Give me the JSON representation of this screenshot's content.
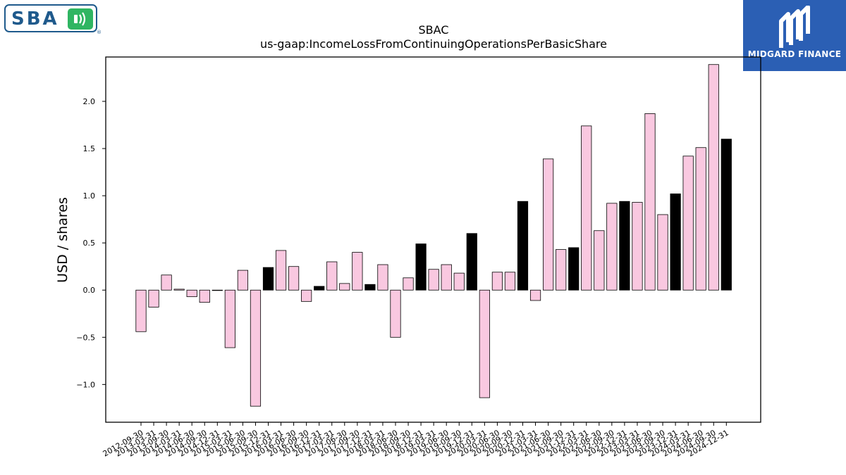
{
  "brand": {
    "left_logo_text": "SBA",
    "right_logo_text": "MIDGARD FINANCE"
  },
  "chart_data": {
    "type": "bar",
    "title": "SBAC",
    "subtitle": "us-gaap:IncomeLossFromContinuingOperationsPerBasicShare",
    "xlabel": "",
    "ylabel": "USD / shares",
    "ylim": [
      -1.4,
      2.47
    ],
    "yticks": [
      -1.0,
      -0.5,
      0.0,
      0.5,
      1.0,
      1.5,
      2.0
    ],
    "ytick_labels": [
      "−1.0",
      "−0.5",
      "0.0",
      "0.5",
      "1.0",
      "1.5",
      "2.0"
    ],
    "grid": false,
    "legend": "none",
    "colors": {
      "quarter": "#f9c8e0",
      "year_end": "#000000",
      "edge": "#000000"
    },
    "categories": [
      "2012-09-30",
      "2013-03-31",
      "2013-09-30",
      "2014-03-31",
      "2014-06-30",
      "2014-09-30",
      "2014-12-31",
      "2015-03-31",
      "2015-06-30",
      "2015-09-30",
      "2015-12-31",
      "2016-03-31",
      "2016-06-30",
      "2016-09-30",
      "2016-12-31",
      "2017-03-31",
      "2017-06-30",
      "2017-09-30",
      "2017-12-31",
      "2018-03-31",
      "2018-06-30",
      "2018-09-30",
      "2018-12-31",
      "2019-03-31",
      "2019-06-30",
      "2019-09-30",
      "2019-12-31",
      "2020-03-31",
      "2020-06-30",
      "2020-09-30",
      "2020-12-31",
      "2021-03-31",
      "2021-06-30",
      "2021-09-30",
      "2021-12-31",
      "2022-03-31",
      "2022-06-30",
      "2022-09-30",
      "2022-12-31",
      "2023-03-31",
      "2023-06-30",
      "2023-09-30",
      "2023-12-31",
      "2024-03-31",
      "2024-06-30",
      "2024-09-30",
      "2024-12-31"
    ],
    "values": [
      -0.44,
      -0.18,
      0.16,
      0.01,
      -0.07,
      -0.13,
      0.0,
      -0.61,
      0.21,
      -1.23,
      0.24,
      0.42,
      0.25,
      -0.12,
      0.04,
      0.3,
      0.07,
      0.4,
      0.06,
      0.27,
      -0.5,
      0.13,
      0.49,
      0.22,
      0.27,
      0.18,
      0.6,
      -1.14,
      0.19,
      0.19,
      0.94,
      -0.11,
      1.39,
      0.43,
      0.45,
      1.74,
      0.63,
      0.92,
      0.94,
      0.93,
      1.87,
      0.8,
      1.02,
      1.42,
      1.51,
      2.39,
      1.6
    ],
    "year_end": [
      false,
      false,
      false,
      false,
      false,
      false,
      true,
      false,
      false,
      false,
      true,
      false,
      false,
      false,
      true,
      false,
      false,
      false,
      true,
      false,
      false,
      false,
      true,
      false,
      false,
      false,
      true,
      false,
      false,
      false,
      true,
      false,
      false,
      false,
      true,
      false,
      false,
      false,
      true,
      false,
      false,
      false,
      true,
      false,
      false,
      false,
      true
    ]
  }
}
